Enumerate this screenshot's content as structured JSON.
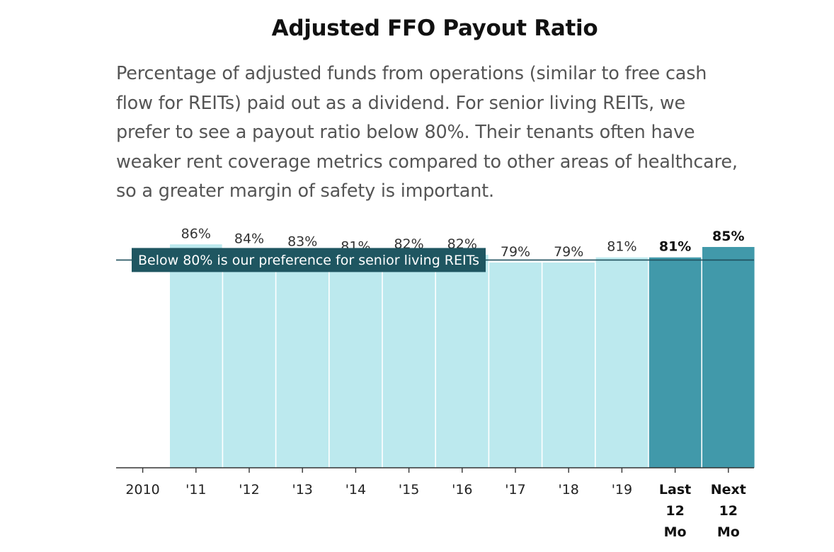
{
  "title": "Adjusted FFO Payout Ratio",
  "subtitle": "Percentage of adjusted funds from operations (similar to free cash flow for REITs) paid out as a dividend. For senior living REITs, we prefer to see a payout ratio below 80%. Their tenants often have weaker rent coverage metrics compared to other areas of healthcare, so a greater margin of safety is important.",
  "colors": {
    "bar_historical": "#bce9ee",
    "bar_emphasis": "#4199aa",
    "threshold_line": "#1f4f5c",
    "threshold_label_bg": "#1f5661",
    "axis": "#333333"
  },
  "chart_data": {
    "type": "bar",
    "categories": [
      "2010",
      "'11",
      "'12",
      "'13",
      "'14",
      "'15",
      "'16",
      "'17",
      "'18",
      "'19",
      "Last 12 Mo",
      "Next 12 Mo"
    ],
    "category_lines": [
      [
        "2010"
      ],
      [
        "'11"
      ],
      [
        "'12"
      ],
      [
        "'13"
      ],
      [
        "'14"
      ],
      [
        "'15"
      ],
      [
        "'16"
      ],
      [
        "'17"
      ],
      [
        "'18"
      ],
      [
        "'19"
      ],
      [
        "Last",
        "12",
        "Mo"
      ],
      [
        "Next",
        "12",
        "Mo"
      ]
    ],
    "values": [
      null,
      86,
      84,
      83,
      81,
      82,
      82,
      79,
      79,
      81,
      81,
      85
    ],
    "value_labels": [
      "",
      "86%",
      "84%",
      "83%",
      "81%",
      "82%",
      "82%",
      "79%",
      "79%",
      "81%",
      "81%",
      "85%"
    ],
    "emphasized": [
      false,
      false,
      false,
      false,
      false,
      false,
      false,
      false,
      false,
      false,
      true,
      true
    ],
    "threshold": {
      "value": 80,
      "label": "Below 80% is our preference for senior living REITs"
    },
    "ylim": [
      0,
      85
    ],
    "xlabel": "",
    "ylabel": "",
    "grid": false,
    "legend": "none"
  }
}
